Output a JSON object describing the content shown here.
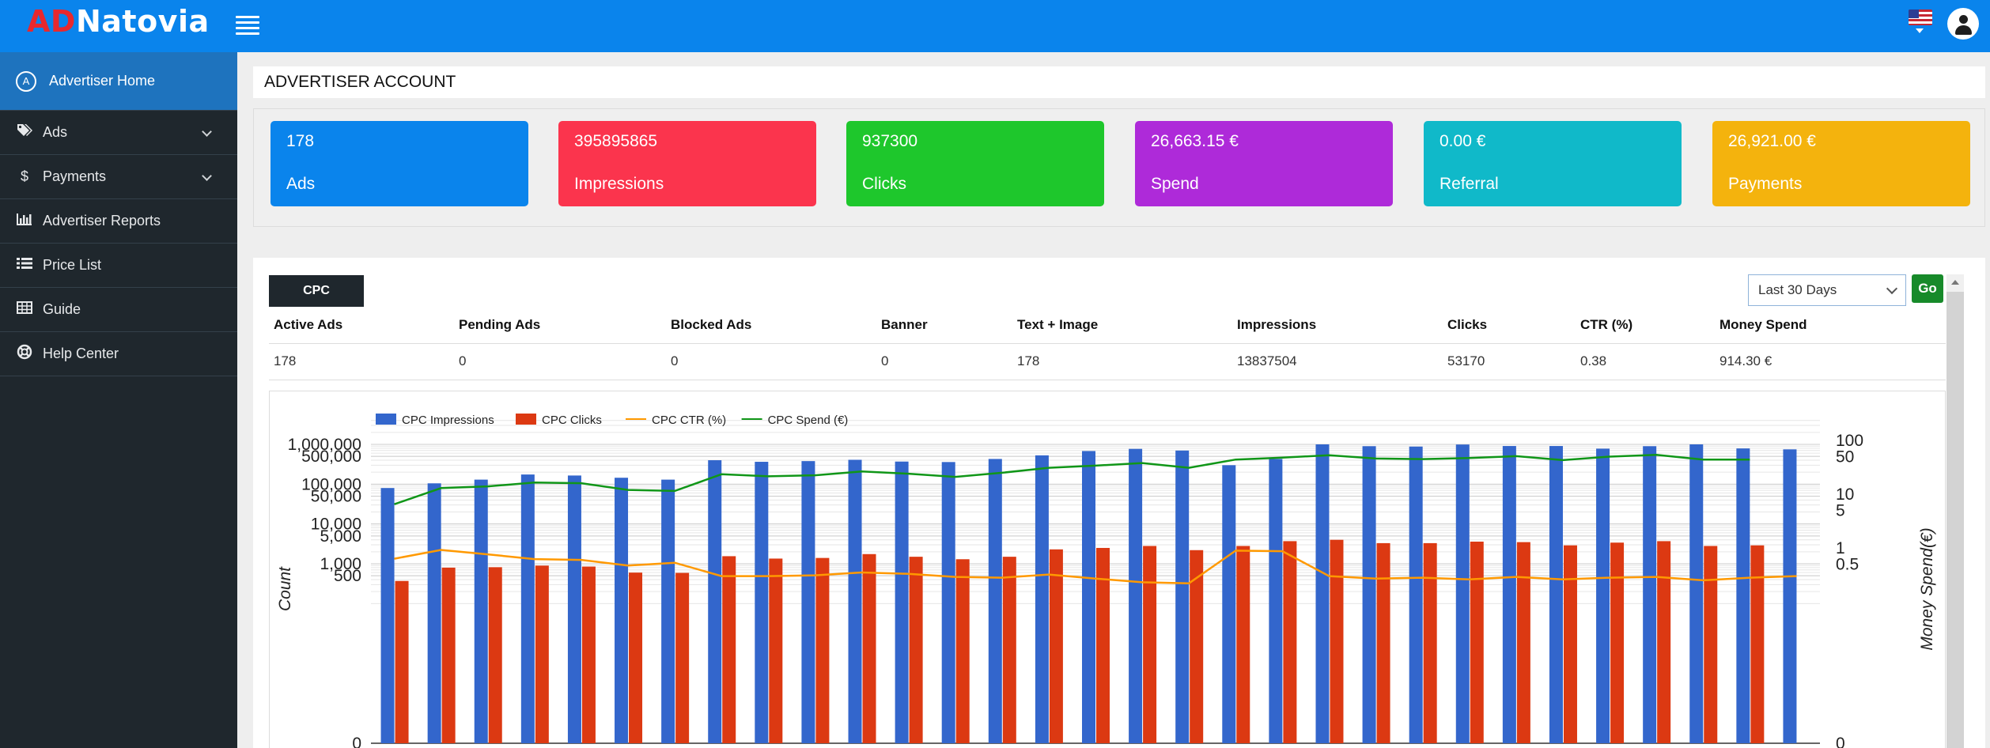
{
  "brand": {
    "logo_ad": "AD",
    "logo_rest": "Natovia"
  },
  "header": {
    "flag_icon": "us-flag-icon",
    "user_icon": "user-icon"
  },
  "sidebar": {
    "items": [
      {
        "label": "Advertiser Home",
        "icon": "A",
        "active": true
      },
      {
        "label": "Ads",
        "icon": "tags-icon",
        "expandable": true
      },
      {
        "label": "Payments",
        "icon": "dollar-icon",
        "expandable": true
      },
      {
        "label": "Advertiser Reports",
        "icon": "bar-chart-icon"
      },
      {
        "label": "Price List",
        "icon": "list-icon"
      },
      {
        "label": "Guide",
        "icon": "table-icon"
      },
      {
        "label": "Help Center",
        "icon": "life-ring-icon"
      }
    ]
  },
  "account": {
    "title": "ADVERTISER ACCOUNT",
    "cards": [
      {
        "value": "178",
        "label": "Ads",
        "color": "#0a84ec"
      },
      {
        "value": "395895865",
        "label": "Impressions",
        "color": "#fb344d"
      },
      {
        "value": "937300",
        "label": "Clicks",
        "color": "#1ec72c"
      },
      {
        "value": "26,663.15 €",
        "label": "Spend",
        "color": "#ae2ad9"
      },
      {
        "value": "0.00 €",
        "label": "Referral",
        "color": "#10b9c9"
      },
      {
        "value": "26,921.00 €",
        "label": "Payments",
        "color": "#f4b30d"
      }
    ]
  },
  "report": {
    "tab_label": "CPC",
    "range": "Last 30 Days",
    "go_label": "Go",
    "columns": [
      "Active Ads",
      "Pending Ads",
      "Blocked Ads",
      "Banner",
      "Text + Image",
      "Impressions",
      "Clicks",
      "CTR (%)",
      "Money Spend"
    ],
    "row": [
      "178",
      "0",
      "0",
      "0",
      "178",
      "13837504",
      "53170",
      "0.38",
      "914.30 €"
    ]
  },
  "chart_data": {
    "type": "bar",
    "log_scale": true,
    "ylabel": "Count",
    "y2label": "Money Spend(€)",
    "yticks": [
      {
        "value": 1000000,
        "label": "1,000,000"
      },
      {
        "value": 500000,
        "label": "500,000"
      },
      {
        "value": 100000,
        "label": "100,000"
      },
      {
        "value": 50000,
        "label": "50,000"
      },
      {
        "value": 10000,
        "label": "10,000"
      },
      {
        "value": 5000,
        "label": "5,000"
      },
      {
        "value": 1000,
        "label": "1,000"
      },
      {
        "value": 500,
        "label": "500"
      },
      {
        "value": 0,
        "label": "0"
      }
    ],
    "y2ticks": [
      {
        "value": 100,
        "label": "100"
      },
      {
        "value": 50,
        "label": "50"
      },
      {
        "value": 10,
        "label": "10"
      },
      {
        "value": 5,
        "label": "5"
      },
      {
        "value": 1,
        "label": "1"
      },
      {
        "value": 0.5,
        "label": "0.5"
      },
      {
        "value": 0,
        "label": "0"
      }
    ],
    "legend": [
      {
        "name": "CPC Impressions",
        "color": "#3366cc",
        "kind": "bar"
      },
      {
        "name": "CPC Clicks",
        "color": "#dc3912",
        "kind": "bar"
      },
      {
        "name": "CPC CTR (%)",
        "color": "#ff9900",
        "kind": "line"
      },
      {
        "name": "CPC Spend (€)",
        "color": "#109618",
        "kind": "line"
      }
    ],
    "series": [
      {
        "name": "CPC Impressions",
        "axis": "left",
        "values": [
          80000,
          105000,
          130000,
          175000,
          165000,
          145000,
          130000,
          400000,
          365000,
          380000,
          410000,
          370000,
          360000,
          430000,
          530000,
          680000,
          770000,
          700000,
          300000,
          430000,
          1000000,
          900000,
          880000,
          990000,
          910000,
          910000,
          780000,
          900000,
          1000000,
          790000,
          750000
        ]
      },
      {
        "name": "CPC Clicks",
        "axis": "left",
        "values": [
          370,
          800,
          820,
          900,
          850,
          600,
          590,
          1550,
          1350,
          1400,
          1750,
          1500,
          1300,
          1500,
          2300,
          2500,
          2800,
          2200,
          2800,
          3700,
          4000,
          3300,
          3300,
          3600,
          3500,
          2900,
          3400,
          3700,
          2800,
          2900,
          null
        ]
      },
      {
        "name": "CPC CTR (%)",
        "axis": "right",
        "values": [
          0.63,
          0.92,
          0.76,
          0.62,
          0.6,
          0.47,
          0.53,
          0.3,
          0.3,
          0.31,
          0.35,
          0.33,
          0.29,
          0.28,
          0.32,
          0.27,
          0.23,
          0.22,
          0.89,
          0.87,
          0.3,
          0.27,
          0.28,
          0.26,
          0.29,
          0.26,
          0.28,
          0.29,
          0.25,
          0.28,
          0.3
        ]
      },
      {
        "name": "CPC Spend (€)",
        "axis": "right",
        "values": [
          6.5,
          13,
          14,
          16.5,
          16,
          12,
          11.5,
          23.5,
          21.5,
          22.5,
          26.5,
          24,
          21,
          25,
          31,
          34,
          38,
          31,
          44,
          48,
          53,
          46,
          45,
          47,
          51,
          43,
          50,
          54,
          44,
          44,
          null
        ]
      }
    ]
  }
}
